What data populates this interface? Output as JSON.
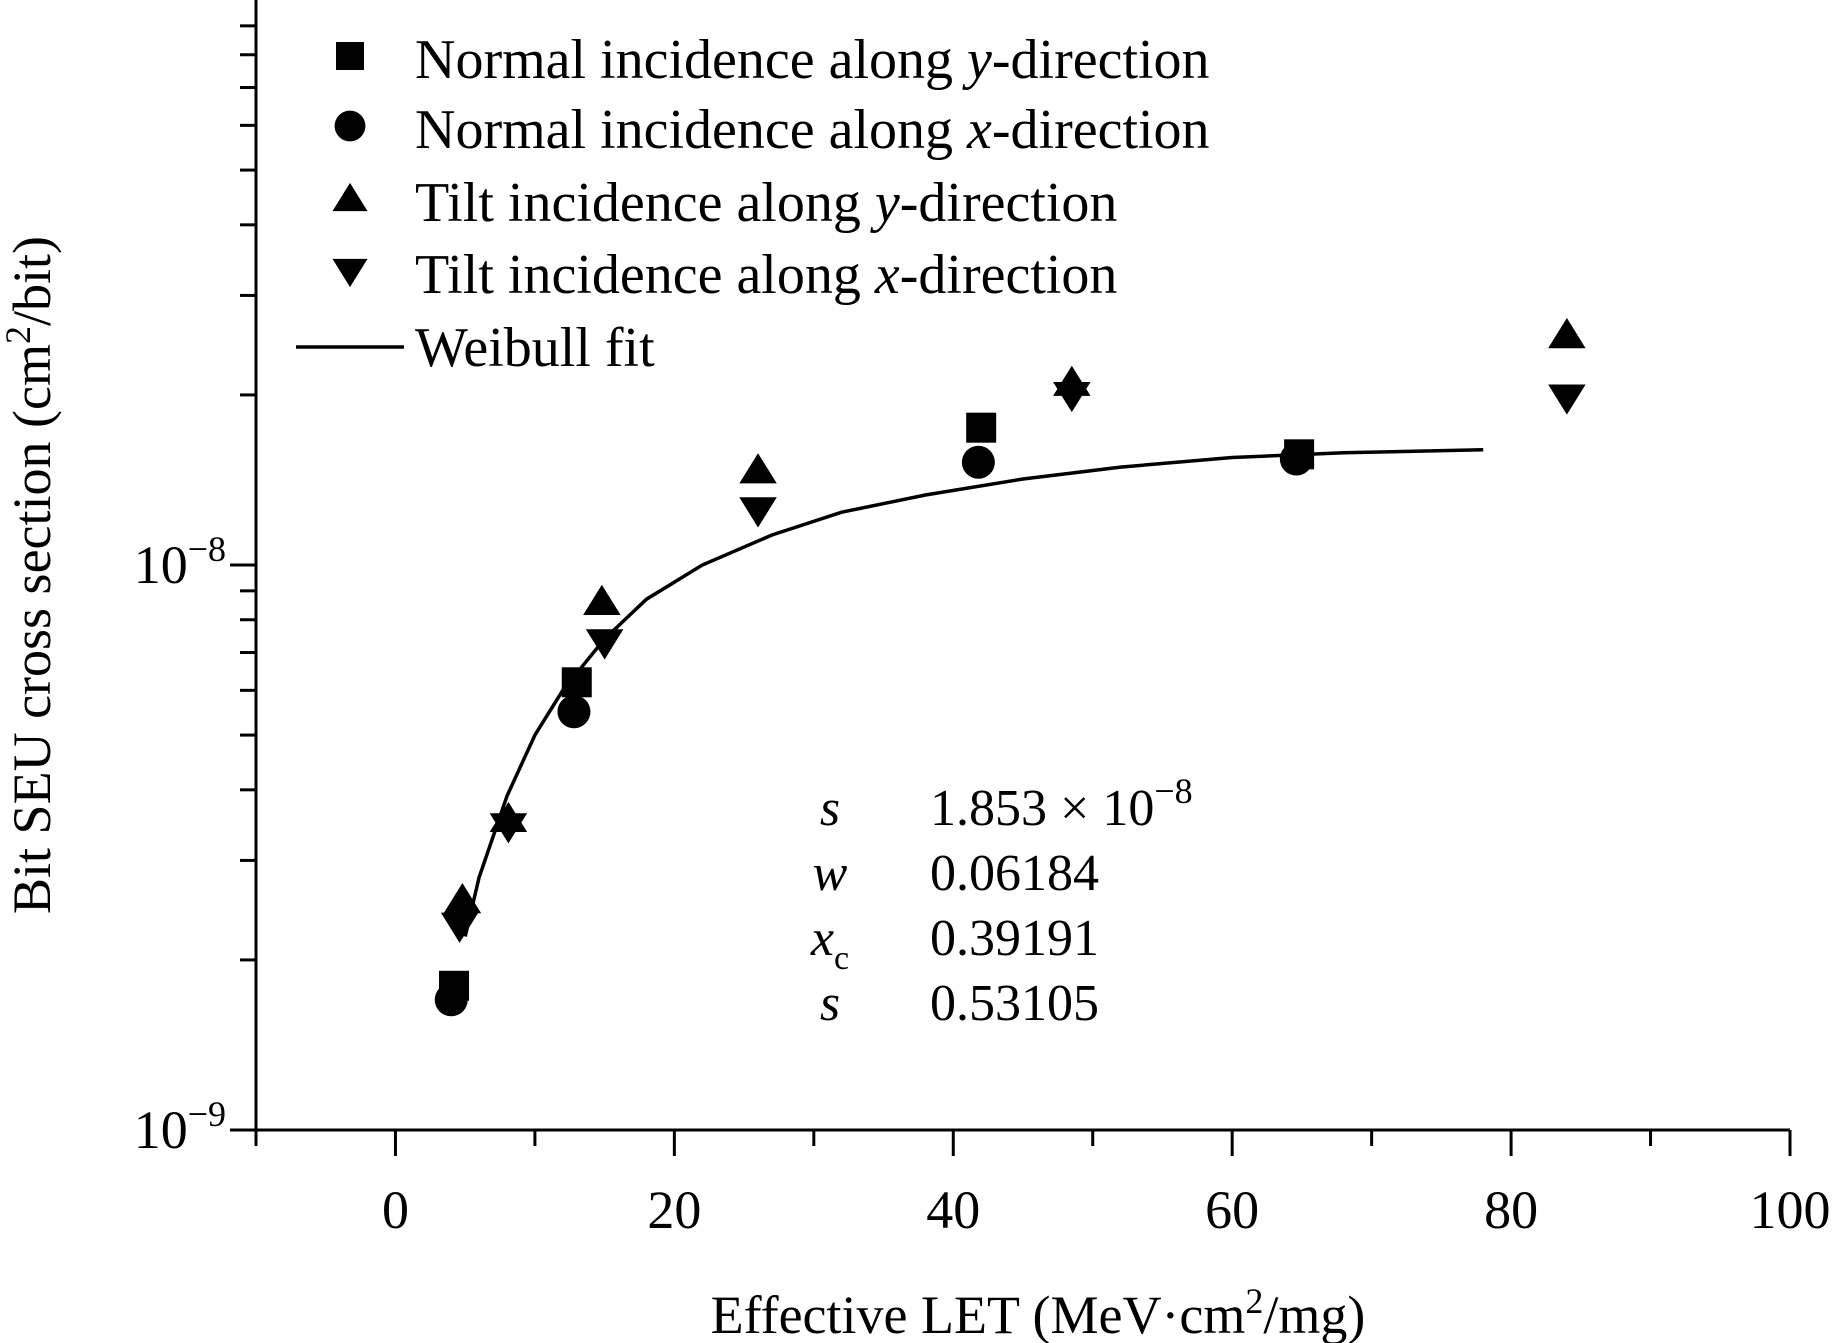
{
  "chart_data": {
    "type": "scatter",
    "title": "",
    "xlabel": {
      "pre": "Effective LET (MeV·cm",
      "sup": "2",
      "post": "/mg)"
    },
    "ylabel": {
      "pre": "Bit SEU cross section (cm",
      "sup": "2",
      "post": "/bit)"
    },
    "xlim": [
      -10,
      100
    ],
    "ylim": [
      1e-09,
      1e-07
    ],
    "yscale": "log",
    "grid": false,
    "legend_position": "top-left",
    "x_ticks": [
      {
        "value": 0,
        "label": "0"
      },
      {
        "value": 20,
        "label": "20"
      },
      {
        "value": 40,
        "label": "40"
      },
      {
        "value": 60,
        "label": "60"
      },
      {
        "value": 80,
        "label": "80"
      },
      {
        "value": 100,
        "label": "100"
      }
    ],
    "y_ticks": [
      {
        "value": 1e-09,
        "base": "10",
        "exp": "−9"
      },
      {
        "value": 1e-08,
        "base": "10",
        "exp": "−8"
      }
    ],
    "series": [
      {
        "name_pre": "Normal incidence along ",
        "name_var": "y",
        "name_post": "-direction",
        "marker": "square",
        "points": [
          [
            4.2,
            1.8e-09
          ],
          [
            13.0,
            6.2e-09
          ],
          [
            42.0,
            1.75e-08
          ],
          [
            64.8,
            1.57e-08
          ]
        ]
      },
      {
        "name_pre": "Normal incidence along ",
        "name_var": "x",
        "name_post": "-direction",
        "marker": "circle",
        "points": [
          [
            4.0,
            1.7e-09
          ],
          [
            12.8,
            5.5e-09
          ],
          [
            41.8,
            1.52e-08
          ],
          [
            64.6,
            1.54e-08
          ]
        ]
      },
      {
        "name_pre": "Tilt incidence along ",
        "name_var": "y",
        "name_post": "-direction",
        "marker": "triangle-up",
        "points": [
          [
            4.8,
            2.55e-09
          ],
          [
            8.1,
            3.55e-09
          ],
          [
            14.8,
            8.6e-09
          ],
          [
            26.0,
            1.47e-08
          ],
          [
            48.5,
            2.1e-08
          ],
          [
            84.0,
            2.55e-08
          ]
        ]
      },
      {
        "name_pre": "Tilt incidence along ",
        "name_var": "x",
        "name_post": "-direction",
        "marker": "triangle-down",
        "points": [
          [
            4.6,
            2.3e-09
          ],
          [
            8.1,
            3.45e-09
          ],
          [
            15.0,
            7.3e-09
          ],
          [
            26.0,
            1.25e-08
          ],
          [
            48.5,
            2e-08
          ],
          [
            84.0,
            1.98e-08
          ]
        ]
      }
    ],
    "fit": {
      "name": "Weibull fit",
      "points": [
        [
          5.0,
          2.2e-09
        ],
        [
          6.0,
          2.8e-09
        ],
        [
          8.0,
          3.9e-09
        ],
        [
          10.0,
          5e-09
        ],
        [
          12.0,
          6e-09
        ],
        [
          15.0,
          7.4e-09
        ],
        [
          18.0,
          8.7e-09
        ],
        [
          22.0,
          1e-08
        ],
        [
          27.0,
          1.13e-08
        ],
        [
          32.0,
          1.24e-08
        ],
        [
          38.0,
          1.33e-08
        ],
        [
          45.0,
          1.42e-08
        ],
        [
          52.0,
          1.49e-08
        ],
        [
          60.0,
          1.55e-08
        ],
        [
          68.0,
          1.58e-08
        ],
        [
          78.0,
          1.6e-08
        ]
      ]
    },
    "parameters": [
      {
        "name": "s",
        "sub": "",
        "value": "1.853 ×  10",
        "exp": "−8"
      },
      {
        "name": "w",
        "sub": "",
        "value": "0.06184",
        "exp": ""
      },
      {
        "name": "x",
        "sub": "c",
        "value": "0.39191",
        "exp": ""
      },
      {
        "name": "s",
        "sub": "",
        "value": "0.53105",
        "exp": ""
      }
    ]
  }
}
